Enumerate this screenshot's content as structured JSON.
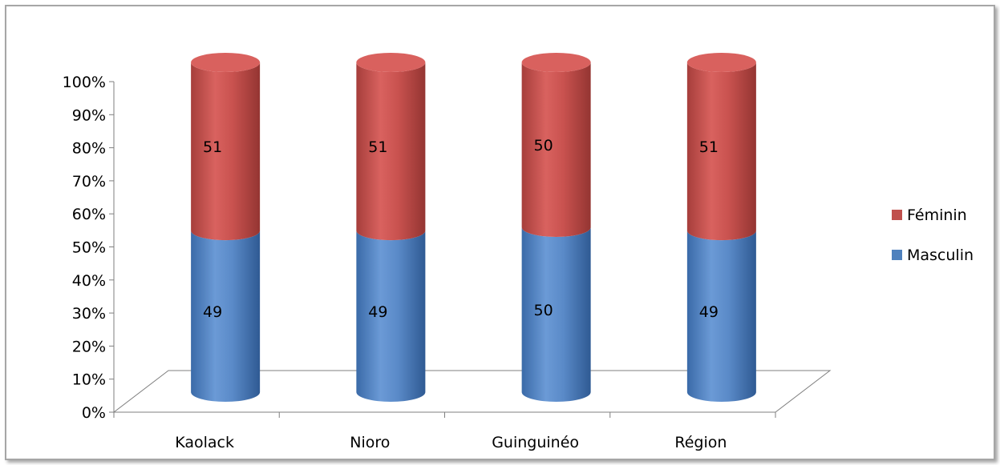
{
  "chart_data": {
    "type": "bar",
    "stacked": true,
    "percent_stacked": true,
    "style": "3d-cylinder",
    "categories": [
      "Kaolack",
      "Nioro",
      "Guinguinéo",
      "Région"
    ],
    "series": [
      {
        "name": "Masculin",
        "values": [
          49,
          49,
          50,
          49
        ],
        "color": "#4f81bd"
      },
      {
        "name": "Féminin",
        "values": [
          51,
          51,
          50,
          51
        ],
        "color": "#c0504d"
      }
    ],
    "y_ticks": [
      "0%",
      "10%",
      "20%",
      "30%",
      "40%",
      "50%",
      "60%",
      "70%",
      "80%",
      "90%",
      "100%"
    ],
    "ylim": [
      0,
      100
    ],
    "legend_position": "right",
    "legend": [
      "Féminin",
      "Masculin"
    ],
    "grid": false
  }
}
